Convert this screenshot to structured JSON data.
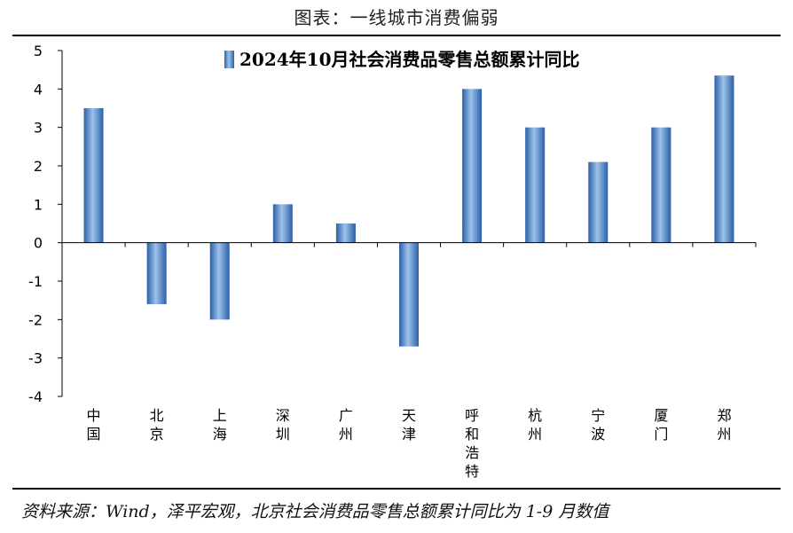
{
  "page_title": "图表：一线城市消费偏弱",
  "source_note": "资料来源：Wind，泽平宏观，北京社会消费品零售总额累计同比为 1-9 月数值",
  "colors": {
    "bar_light": "#9ec3ea",
    "bar_mid": "#4a86cc",
    "bar_dark": "#2a5fa8",
    "axis": "#000000"
  },
  "chart_data": {
    "type": "bar",
    "title": "",
    "legend": {
      "label": "2024年10月社会消费品零售总额累计同比",
      "position": "top-right"
    },
    "categories": [
      "中国",
      "北京",
      "上海",
      "深圳",
      "广州",
      "天津",
      "呼和浩特",
      "杭州",
      "宁波",
      "厦门",
      "郑州"
    ],
    "values": [
      3.5,
      -1.6,
      -2.0,
      1.0,
      0.5,
      -2.7,
      4.0,
      3.0,
      2.1,
      3.0,
      4.35
    ],
    "ylim": [
      -4,
      5
    ],
    "yticks": [
      5,
      4,
      3,
      2,
      1,
      0,
      -1,
      -2,
      -3,
      -4
    ],
    "xlabel": "",
    "ylabel": ""
  }
}
